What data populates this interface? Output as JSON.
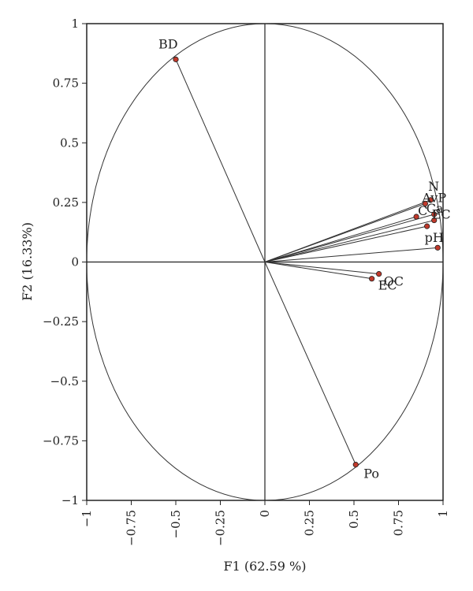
{
  "chart_data": {
    "type": "scatter",
    "subtype": "pca-correlation-circle",
    "title": "",
    "xlabel": "F1 (62.59 %)",
    "ylabel": "F2 (16.33%)",
    "xlim": [
      -1,
      1
    ],
    "ylim": [
      -1,
      1
    ],
    "xticks": [
      "−1",
      "−0.75",
      "−0.5",
      "−0.25",
      "0",
      "0.25",
      "0.5",
      "0.75",
      "1"
    ],
    "yticks": [
      "1",
      "0.75",
      "0.5",
      "0.25",
      "0",
      "−0.25",
      "−0.5",
      "−0.75",
      "−1"
    ],
    "grid": false,
    "legend": "none",
    "unit_circle": true,
    "vectors_from_origin": true,
    "marker_color": "#c0392b",
    "points": [
      {
        "label": "BD",
        "x": -0.5,
        "y": 0.85
      },
      {
        "label": "Po",
        "x": 0.51,
        "y": -0.85
      },
      {
        "label": "OC",
        "x": 0.64,
        "y": -0.05
      },
      {
        "label": "EC",
        "x": 0.6,
        "y": -0.07
      },
      {
        "label": "N",
        "x": 0.93,
        "y": 0.26
      },
      {
        "label": "AvP",
        "x": 0.9,
        "y": 0.245
      },
      {
        "label": "Ca",
        "x": 0.95,
        "y": 0.2
      },
      {
        "label": "C",
        "x": 0.85,
        "y": 0.19
      },
      {
        "label": "EC",
        "x": 0.95,
        "y": 0.175
      },
      {
        "label": "pH",
        "x": 0.91,
        "y": 0.15
      },
      {
        "label": "",
        "x": 0.97,
        "y": 0.06
      }
    ]
  }
}
